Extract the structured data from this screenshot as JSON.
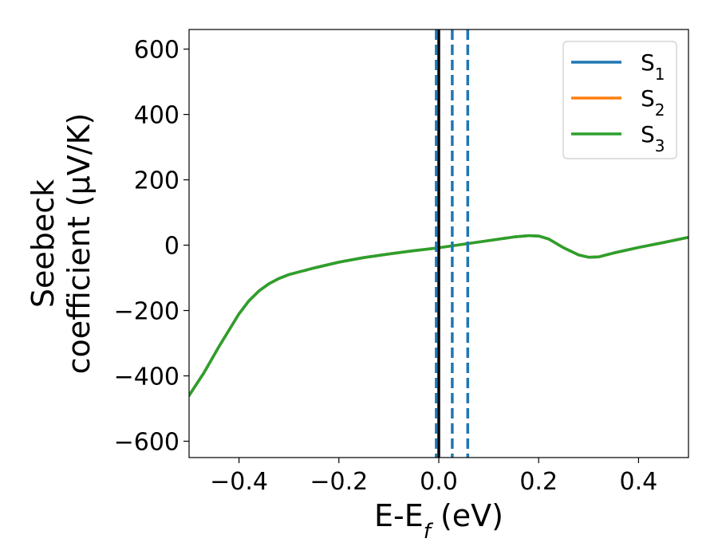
{
  "chart_data": {
    "type": "line",
    "xlabel": "E-E",
    "xlabel_sub": "f",
    "xlabel_unit": " (eV)",
    "ylabel_line1": "Seebeck",
    "ylabel_line2": "coefficient  (μV/K)",
    "xlim": [
      -0.5,
      0.5
    ],
    "ylim": [
      -650,
      660
    ],
    "xticks": [
      -0.4,
      -0.2,
      0.0,
      0.2,
      0.4
    ],
    "xtick_labels": [
      "−0.4",
      "−0.2",
      "0.0",
      "0.2",
      "0.4"
    ],
    "yticks": [
      600,
      400,
      200,
      0,
      -200,
      -400,
      -600
    ],
    "ytick_labels": [
      "600",
      "400",
      "200",
      "0",
      "−200",
      "−400",
      "−600"
    ],
    "legend_position": "top-right",
    "grid": false,
    "series": [
      {
        "name": "S",
        "name_sub": "1",
        "color": "#1f77b4",
        "x": [
          -0.5,
          -0.47,
          -0.44,
          -0.42,
          -0.4,
          -0.38,
          -0.36,
          -0.34,
          -0.32,
          -0.3,
          -0.25,
          -0.2,
          -0.15,
          -0.1,
          -0.05,
          0.0,
          0.05,
          0.1,
          0.15,
          0.18,
          0.2,
          0.22,
          0.25,
          0.28,
          0.3,
          0.32,
          0.35,
          0.4,
          0.45,
          0.5
        ],
        "y": [
          -460,
          -390,
          -310,
          -260,
          -210,
          -170,
          -140,
          -118,
          -102,
          -90,
          -70,
          -52,
          -38,
          -27,
          -17,
          -8,
          3,
          14,
          25,
          29,
          28,
          19,
          -8,
          -30,
          -37,
          -36,
          -24,
          -7,
          8,
          24
        ]
      },
      {
        "name": "S",
        "name_sub": "2",
        "color": "#ff7f0e",
        "x": [
          -0.5,
          -0.47,
          -0.44,
          -0.42,
          -0.4,
          -0.38,
          -0.36,
          -0.34,
          -0.32,
          -0.3,
          -0.25,
          -0.2,
          -0.15,
          -0.1,
          -0.05,
          0.0,
          0.05,
          0.1,
          0.15,
          0.18,
          0.2,
          0.22,
          0.25,
          0.28,
          0.3,
          0.32,
          0.35,
          0.4,
          0.45,
          0.5
        ],
        "y": [
          -460,
          -390,
          -310,
          -260,
          -210,
          -170,
          -140,
          -118,
          -102,
          -90,
          -70,
          -52,
          -38,
          -27,
          -17,
          -8,
          3,
          14,
          25,
          29,
          28,
          19,
          -8,
          -30,
          -37,
          -36,
          -24,
          -7,
          8,
          24
        ]
      },
      {
        "name": "S",
        "name_sub": "3",
        "color": "#2ca02c",
        "x": [
          -0.5,
          -0.47,
          -0.44,
          -0.42,
          -0.4,
          -0.38,
          -0.36,
          -0.34,
          -0.32,
          -0.3,
          -0.25,
          -0.2,
          -0.15,
          -0.1,
          -0.05,
          0.0,
          0.05,
          0.1,
          0.15,
          0.18,
          0.2,
          0.22,
          0.25,
          0.28,
          0.3,
          0.32,
          0.35,
          0.4,
          0.45,
          0.5
        ],
        "y": [
          -460,
          -390,
          -310,
          -260,
          -210,
          -170,
          -140,
          -118,
          -102,
          -90,
          -70,
          -52,
          -38,
          -27,
          -17,
          -8,
          3,
          14,
          25,
          29,
          28,
          19,
          -8,
          -30,
          -37,
          -36,
          -24,
          -7,
          8,
          24
        ]
      }
    ],
    "vlines": [
      {
        "x": 0.0,
        "style": "solid",
        "color": "#000000"
      },
      {
        "x": -0.005,
        "style": "dashed",
        "color": "#1f77b4"
      },
      {
        "x": 0.027,
        "style": "dashed",
        "color": "#1f77b4"
      },
      {
        "x": 0.058,
        "style": "dashed",
        "color": "#1f77b4"
      }
    ]
  }
}
